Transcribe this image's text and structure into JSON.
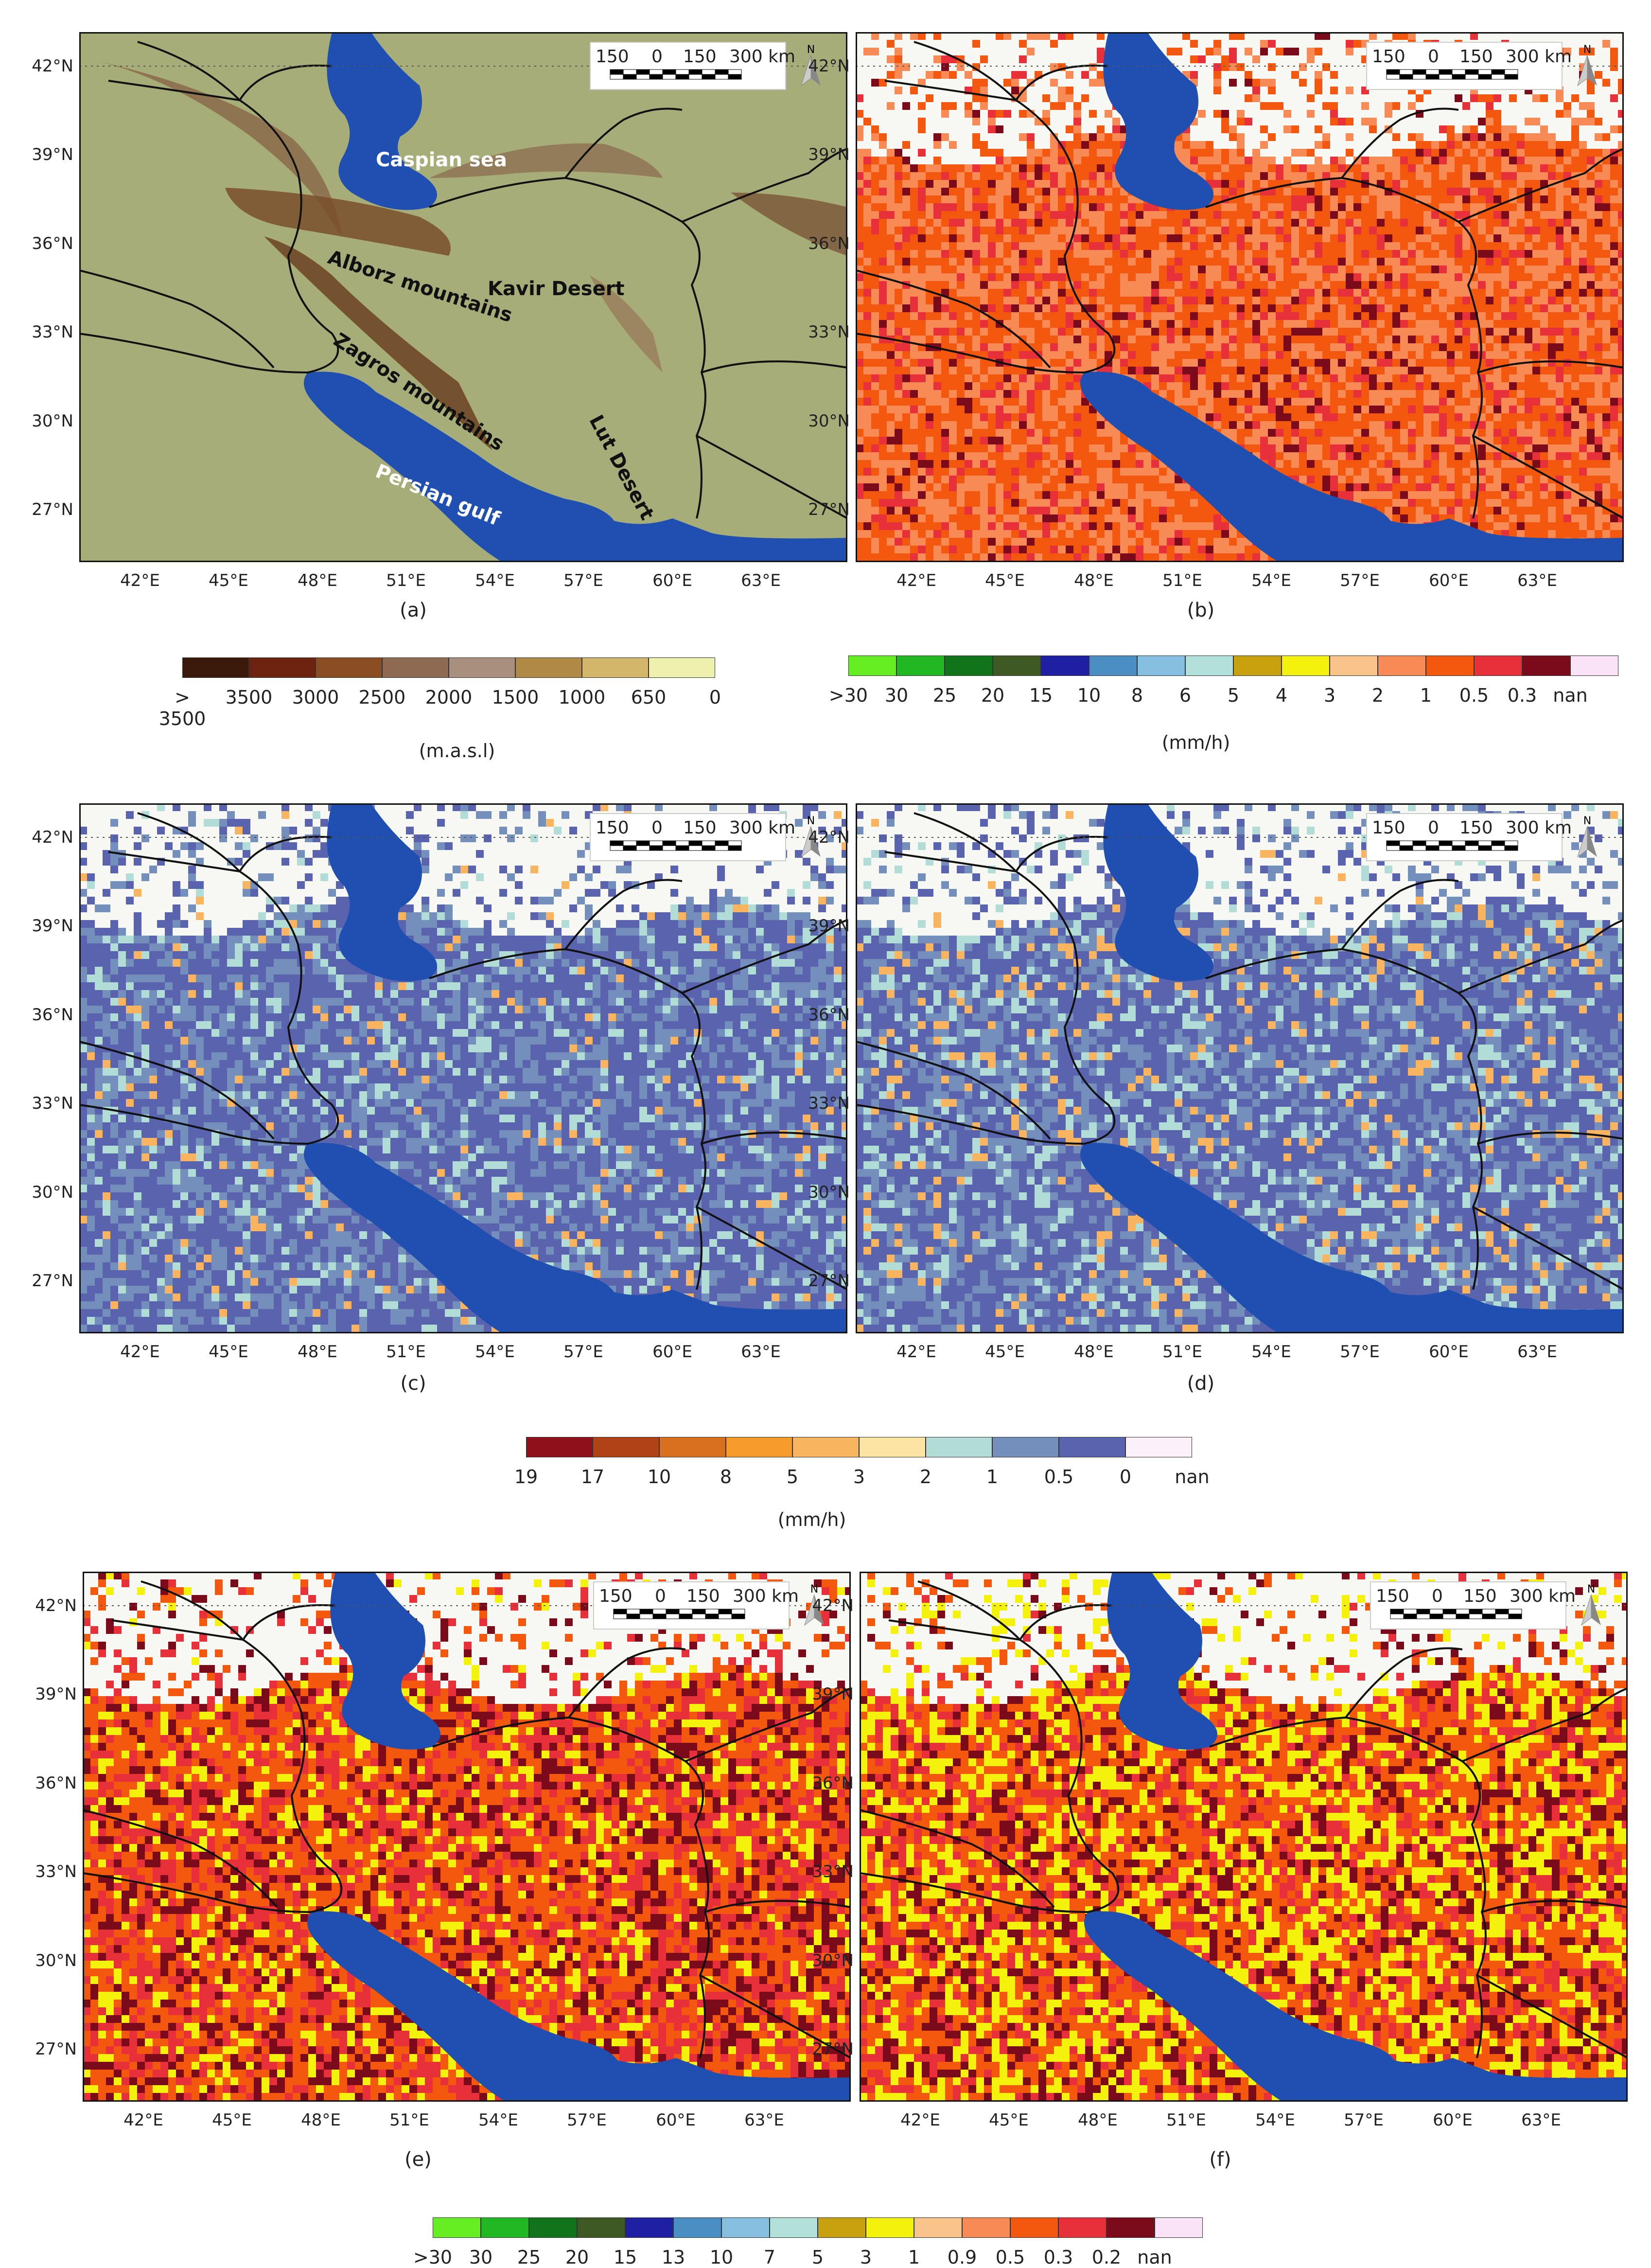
{
  "panels": [
    {
      "id": "a",
      "label": "(a)"
    },
    {
      "id": "b",
      "label": "(b)"
    },
    {
      "id": "c",
      "label": "(c)"
    },
    {
      "id": "d",
      "label": "(d)"
    },
    {
      "id": "e",
      "label": "(e)"
    },
    {
      "id": "f",
      "label": "(f)"
    }
  ],
  "lat_ticks": [
    "42°N",
    "39°N",
    "36°N",
    "33°N",
    "30°N",
    "27°N"
  ],
  "lon_ticks": [
    "42°E",
    "45°E",
    "48°E",
    "51°E",
    "54°E",
    "57°E",
    "60°E",
    "63°E"
  ],
  "scale_bar": {
    "l1": "150",
    "l2": "0",
    "l3": "150",
    "l4": "300 km",
    "north": "N"
  },
  "place_labels": {
    "caspian": "Caspian sea",
    "alborz": "Alborz mountains",
    "kavir": "Kavir Desert",
    "zagros": "Zagros mountains",
    "lut": "Lut Desert",
    "persian": "Persian gulf"
  },
  "legend_elevation": {
    "colors": [
      "#3b1a0c",
      "#6e2210",
      "#8a4d24",
      "#8f6a52",
      "#a98f7d",
      "#b08a44",
      "#d3b66a",
      "#eef0ae"
    ],
    "labels": [
      "> 3500",
      "3500",
      "3000",
      "2500",
      "2000",
      "1500",
      "1000",
      "650",
      "0"
    ],
    "unit": "(m.a.s.l)"
  },
  "legend_b": {
    "colors": [
      "#66ee22",
      "#22b822",
      "#11741a",
      "#3e5a22",
      "#1f1fa3",
      "#4b8ec4",
      "#86c0e0",
      "#b2e0da",
      "#c7a10e",
      "#f4f20c",
      "#f8c48c",
      "#f78a55",
      "#f4580f",
      "#e7303a",
      "#7b0a1b",
      "#fbe3f7"
    ],
    "labels": [
      ">30",
      "30",
      "25",
      "20",
      "15",
      "10",
      "8",
      "6",
      "5",
      "4",
      "3",
      "2",
      "1",
      "0.5",
      "0.3",
      "nan"
    ],
    "unit": "(mm/h)"
  },
  "legend_cd": {
    "colors": [
      "#8f0f1a",
      "#b04218",
      "#d8701e",
      "#f79b2c",
      "#f9b460",
      "#fde3a4",
      "#b2dcd6",
      "#748fbc",
      "#5a63ae",
      "#fbf1fb"
    ],
    "labels": [
      "19",
      "17",
      "10",
      "8",
      "5",
      "3",
      "2",
      "1",
      "0.5",
      "0",
      "nan"
    ],
    "unit": "(mm/h)"
  },
  "legend_ef": {
    "colors": [
      "#66ee22",
      "#22b822",
      "#11741a",
      "#3e5a22",
      "#1f1fa3",
      "#4b8ec4",
      "#86c0e0",
      "#b2e0da",
      "#c7a10e",
      "#f4f20c",
      "#f8c48c",
      "#f78a55",
      "#f4580f",
      "#e7303a",
      "#7b0a1b",
      "#fbe3f7"
    ],
    "labels": [
      ">30",
      "30",
      "25",
      "20",
      "15",
      "13",
      "10",
      "7",
      "5",
      "3",
      "1",
      "0.9",
      "0.5",
      "0.3",
      "0.2",
      "nan"
    ]
  },
  "water_color": "#1f4fb0",
  "border_color": "#111111"
}
